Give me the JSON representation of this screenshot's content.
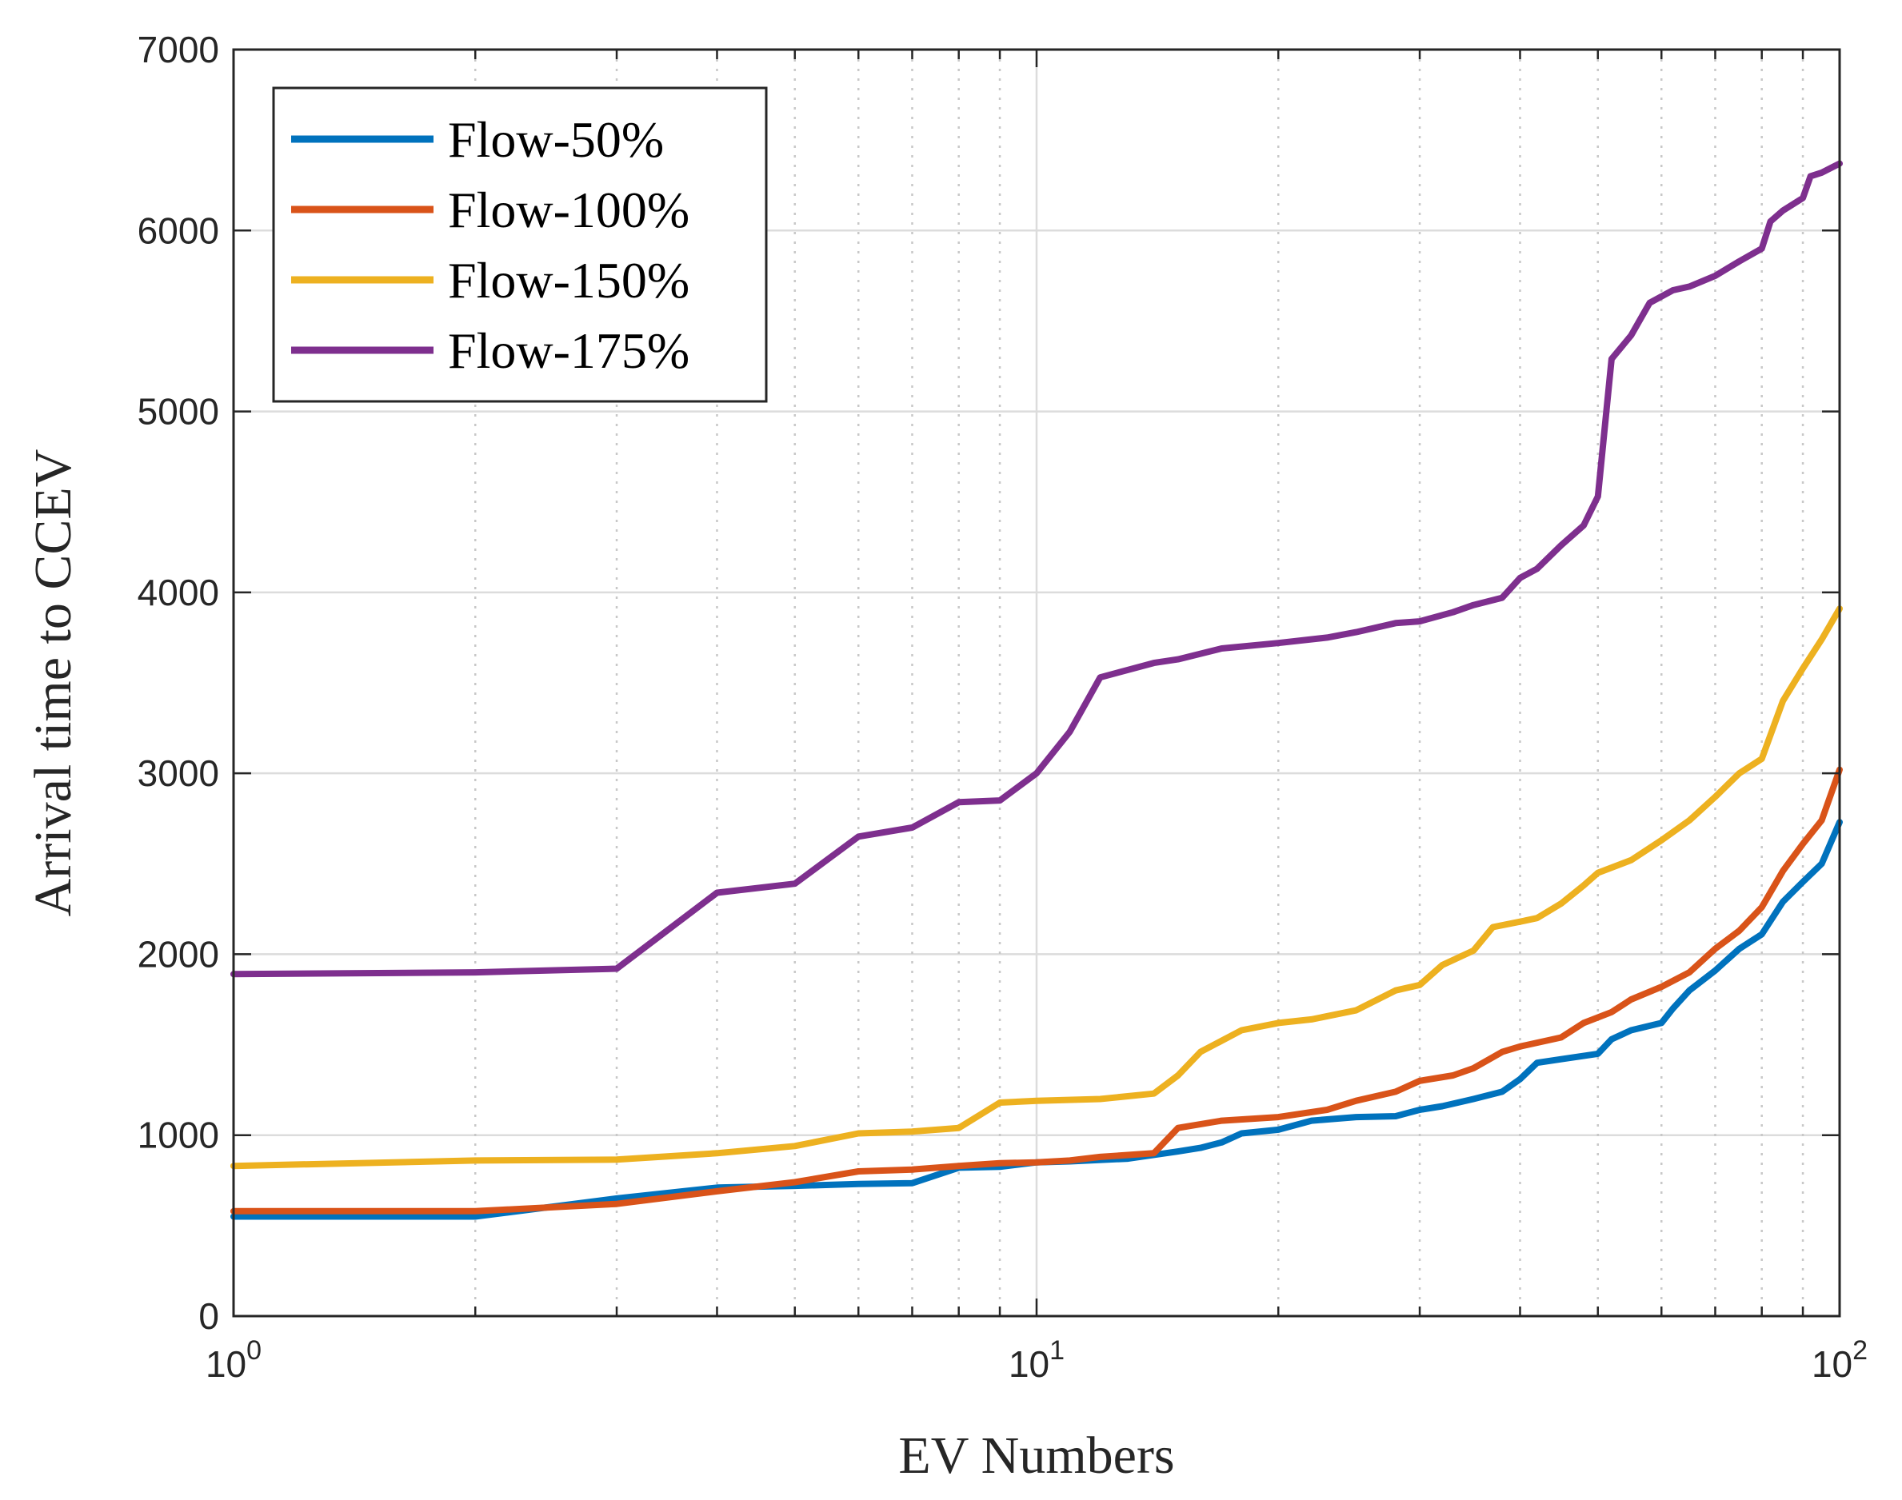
{
  "chart_data": {
    "type": "line",
    "xscale": "log",
    "xlim": [
      1,
      100
    ],
    "ylim": [
      0,
      7000
    ],
    "xlabel": "EV Numbers",
    "ylabel": "Arrival time to CCEV",
    "grid": true,
    "minor_grid_x": true,
    "legend_position": "top-left",
    "yticks": [
      {
        "value": 0,
        "label": "0"
      },
      {
        "value": 1000,
        "label": "1000"
      },
      {
        "value": 2000,
        "label": "2000"
      },
      {
        "value": 3000,
        "label": "3000"
      },
      {
        "value": 4000,
        "label": "4000"
      },
      {
        "value": 5000,
        "label": "5000"
      },
      {
        "value": 6000,
        "label": "6000"
      },
      {
        "value": 7000,
        "label": "7000"
      }
    ],
    "xticks": [
      {
        "value": 1,
        "base": "10",
        "exp": "0"
      },
      {
        "value": 10,
        "base": "10",
        "exp": "1"
      },
      {
        "value": 100,
        "base": "10",
        "exp": "2"
      }
    ],
    "series": [
      {
        "name": "Flow-50%",
        "color": "#0072BD",
        "points": [
          [
            1,
            550
          ],
          [
            2,
            550
          ],
          [
            3,
            650
          ],
          [
            4,
            710
          ],
          [
            5,
            720
          ],
          [
            6,
            730
          ],
          [
            7,
            735
          ],
          [
            8,
            820
          ],
          [
            9,
            825
          ],
          [
            10,
            850
          ],
          [
            11,
            855
          ],
          [
            13,
            870
          ],
          [
            15,
            910
          ],
          [
            16,
            930
          ],
          [
            17,
            960
          ],
          [
            18,
            1010
          ],
          [
            20,
            1030
          ],
          [
            22,
            1080
          ],
          [
            25,
            1100
          ],
          [
            28,
            1105
          ],
          [
            30,
            1140
          ],
          [
            32,
            1160
          ],
          [
            35,
            1200
          ],
          [
            38,
            1240
          ],
          [
            40,
            1310
          ],
          [
            42,
            1400
          ],
          [
            45,
            1420
          ],
          [
            50,
            1450
          ],
          [
            52,
            1530
          ],
          [
            55,
            1580
          ],
          [
            60,
            1620
          ],
          [
            62,
            1700
          ],
          [
            65,
            1800
          ],
          [
            70,
            1910
          ],
          [
            75,
            2030
          ],
          [
            80,
            2110
          ],
          [
            85,
            2290
          ],
          [
            90,
            2400
          ],
          [
            95,
            2500
          ],
          [
            100,
            2730
          ]
        ]
      },
      {
        "name": "Flow-100%",
        "color": "#D95319",
        "points": [
          [
            1,
            580
          ],
          [
            2,
            580
          ],
          [
            3,
            620
          ],
          [
            4,
            690
          ],
          [
            5,
            740
          ],
          [
            6,
            800
          ],
          [
            7,
            810
          ],
          [
            8,
            830
          ],
          [
            9,
            845
          ],
          [
            10,
            850
          ],
          [
            11,
            860
          ],
          [
            12,
            880
          ],
          [
            14,
            900
          ],
          [
            15,
            1040
          ],
          [
            17,
            1080
          ],
          [
            20,
            1100
          ],
          [
            23,
            1140
          ],
          [
            25,
            1190
          ],
          [
            28,
            1240
          ],
          [
            30,
            1300
          ],
          [
            33,
            1330
          ],
          [
            35,
            1370
          ],
          [
            38,
            1460
          ],
          [
            40,
            1490
          ],
          [
            45,
            1540
          ],
          [
            48,
            1620
          ],
          [
            52,
            1680
          ],
          [
            55,
            1750
          ],
          [
            60,
            1820
          ],
          [
            65,
            1900
          ],
          [
            70,
            2030
          ],
          [
            75,
            2130
          ],
          [
            80,
            2260
          ],
          [
            85,
            2460
          ],
          [
            90,
            2610
          ],
          [
            95,
            2740
          ],
          [
            100,
            3020
          ]
        ]
      },
      {
        "name": "Flow-150%",
        "color": "#EDB120",
        "points": [
          [
            1,
            830
          ],
          [
            2,
            860
          ],
          [
            3,
            865
          ],
          [
            4,
            900
          ],
          [
            5,
            940
          ],
          [
            6,
            1010
          ],
          [
            7,
            1020
          ],
          [
            8,
            1040
          ],
          [
            9,
            1180
          ],
          [
            10,
            1190
          ],
          [
            12,
            1200
          ],
          [
            14,
            1230
          ],
          [
            15,
            1330
          ],
          [
            16,
            1460
          ],
          [
            18,
            1580
          ],
          [
            20,
            1620
          ],
          [
            22,
            1640
          ],
          [
            25,
            1690
          ],
          [
            28,
            1800
          ],
          [
            30,
            1830
          ],
          [
            32,
            1940
          ],
          [
            35,
            2020
          ],
          [
            37,
            2150
          ],
          [
            40,
            2180
          ],
          [
            42,
            2200
          ],
          [
            45,
            2280
          ],
          [
            48,
            2380
          ],
          [
            50,
            2450
          ],
          [
            55,
            2520
          ],
          [
            60,
            2630
          ],
          [
            65,
            2740
          ],
          [
            70,
            2870
          ],
          [
            75,
            3000
          ],
          [
            80,
            3080
          ],
          [
            85,
            3400
          ],
          [
            90,
            3580
          ],
          [
            95,
            3740
          ],
          [
            100,
            3910
          ]
        ]
      },
      {
        "name": "Flow-175%",
        "color": "#7E2F8E",
        "points": [
          [
            1,
            1890
          ],
          [
            2,
            1900
          ],
          [
            3,
            1920
          ],
          [
            4,
            2340
          ],
          [
            5,
            2390
          ],
          [
            6,
            2650
          ],
          [
            7,
            2700
          ],
          [
            8,
            2840
          ],
          [
            9,
            2850
          ],
          [
            10,
            3000
          ],
          [
            11,
            3230
          ],
          [
            12,
            3530
          ],
          [
            14,
            3610
          ],
          [
            15,
            3630
          ],
          [
            17,
            3690
          ],
          [
            20,
            3720
          ],
          [
            23,
            3750
          ],
          [
            25,
            3780
          ],
          [
            28,
            3830
          ],
          [
            30,
            3840
          ],
          [
            33,
            3890
          ],
          [
            35,
            3930
          ],
          [
            38,
            3970
          ],
          [
            40,
            4080
          ],
          [
            42,
            4130
          ],
          [
            45,
            4260
          ],
          [
            48,
            4370
          ],
          [
            50,
            4530
          ],
          [
            52,
            5290
          ],
          [
            55,
            5420
          ],
          [
            58,
            5600
          ],
          [
            62,
            5670
          ],
          [
            65,
            5690
          ],
          [
            70,
            5750
          ],
          [
            75,
            5830
          ],
          [
            80,
            5900
          ],
          [
            82,
            6050
          ],
          [
            85,
            6110
          ],
          [
            90,
            6180
          ],
          [
            92,
            6300
          ],
          [
            95,
            6320
          ],
          [
            100,
            6370
          ]
        ]
      }
    ]
  }
}
